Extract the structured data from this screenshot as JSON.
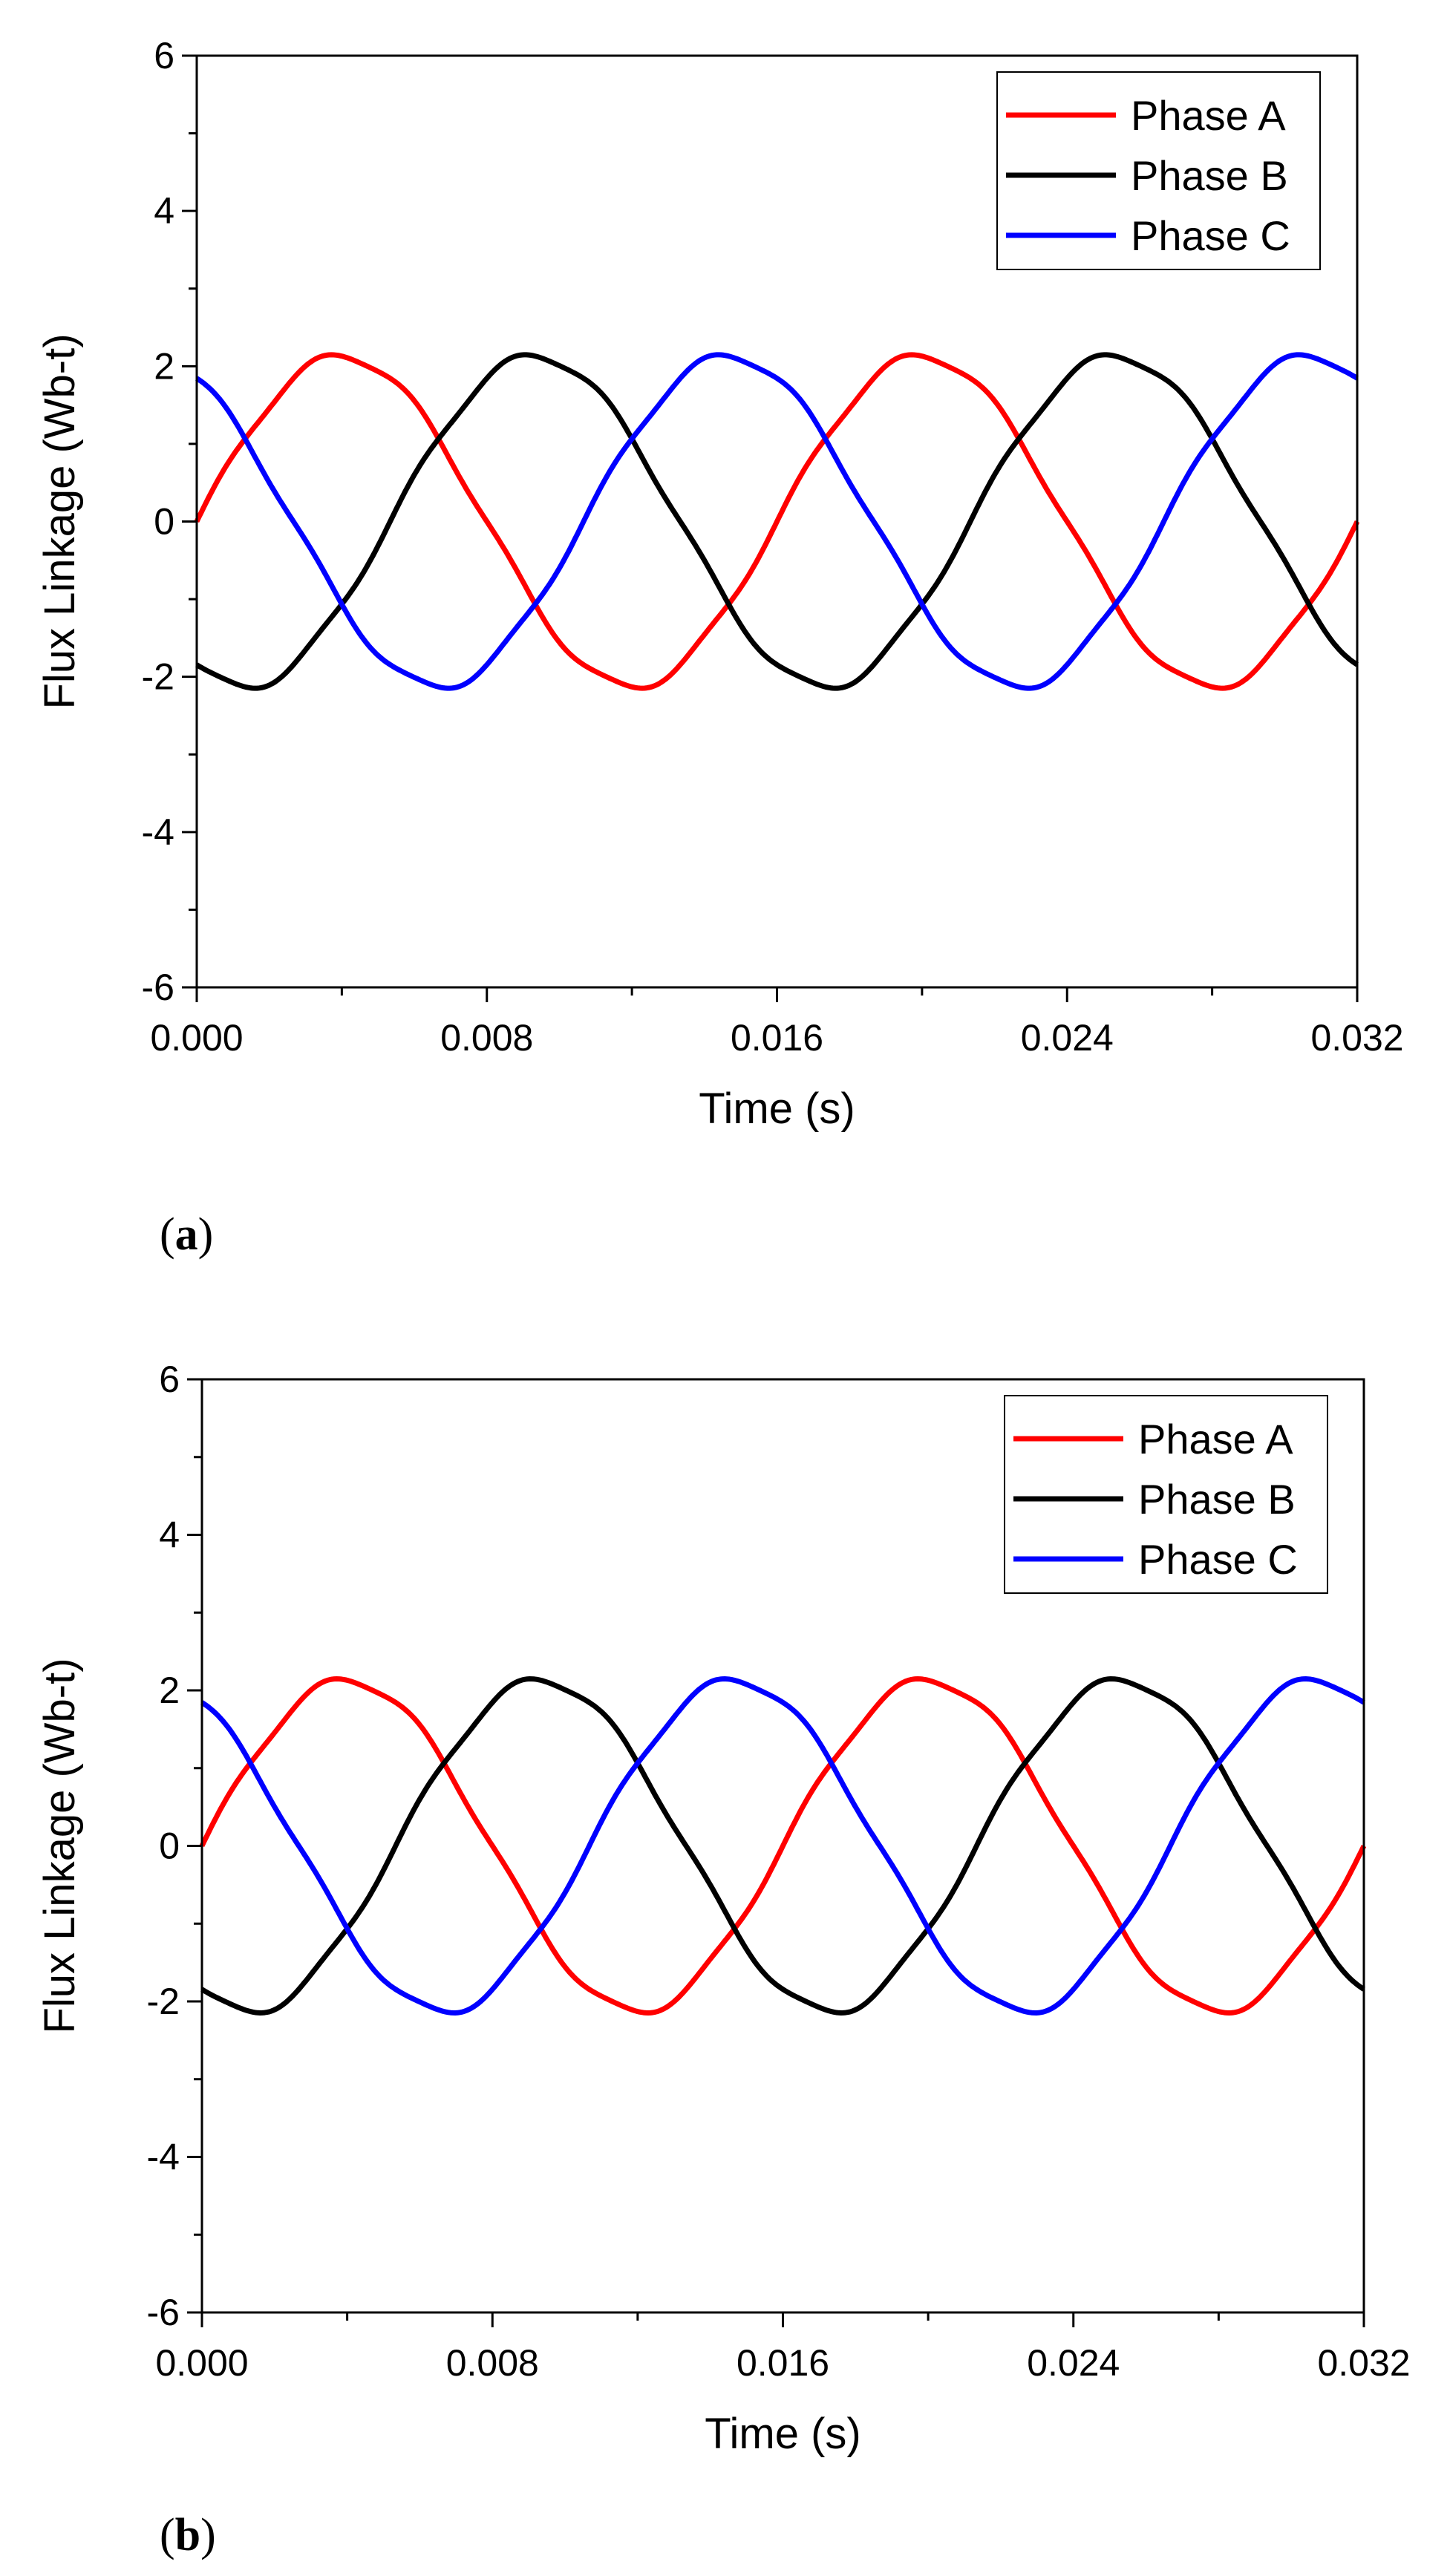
{
  "chart_data": [
    {
      "panel": "a",
      "panel_label": {
        "open": "(",
        "letter": "a",
        "close": ")"
      },
      "type": "line",
      "title": "",
      "xlabel": "Time (s)",
      "ylabel": "Flux Linkage (Wb-t)",
      "xlim": [
        0,
        0.032
      ],
      "ylim": [
        -6,
        6
      ],
      "xticks": [
        "0.000",
        "0.008",
        "0.016",
        "0.024",
        "0.032"
      ],
      "yticks": [
        "6",
        "4",
        "2",
        "0",
        "-2",
        "-4",
        "-6"
      ],
      "grid": false,
      "legend_position": "top-right",
      "series": [
        {
          "name": "Phase A",
          "color": "#ff0000",
          "amplitude": 2.13,
          "period": 0.016,
          "phase_deg": 0
        },
        {
          "name": "Phase B",
          "color": "#000000",
          "amplitude": 2.13,
          "period": 0.016,
          "phase_deg": -120
        },
        {
          "name": "Phase C",
          "color": "#0000ff",
          "amplitude": 2.13,
          "period": 0.016,
          "phase_deg": 120
        }
      ]
    },
    {
      "panel": "b",
      "panel_label": {
        "open": "(",
        "letter": "b",
        "close": ")"
      },
      "type": "line",
      "title": "",
      "xlabel": "Time (s)",
      "ylabel": "Flux Linkage (Wb-t)",
      "xlim": [
        0,
        0.032
      ],
      "ylim": [
        -6,
        6
      ],
      "xticks": [
        "0.000",
        "0.008",
        "0.016",
        "0.024",
        "0.032"
      ],
      "yticks": [
        "6",
        "4",
        "2",
        "0",
        "-2",
        "-4",
        "-6"
      ],
      "grid": false,
      "legend_position": "top-right",
      "series": [
        {
          "name": "Phase A",
          "color": "#ff0000",
          "amplitude": 2.13,
          "period": 0.016,
          "phase_deg": 0
        },
        {
          "name": "Phase B",
          "color": "#000000",
          "amplitude": 2.13,
          "period": 0.016,
          "phase_deg": -120
        },
        {
          "name": "Phase C",
          "color": "#0000ff",
          "amplitude": 2.13,
          "period": 0.016,
          "phase_deg": 120
        }
      ]
    }
  ]
}
